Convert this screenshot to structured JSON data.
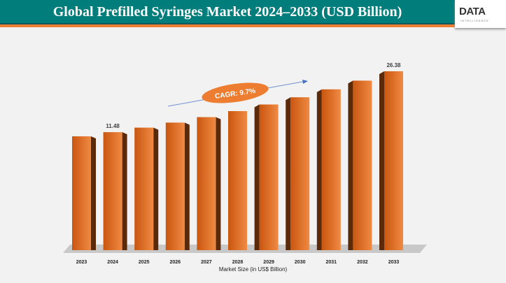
{
  "header": {
    "title": "Global Prefilled Syringes Market 2024–2033 (USD Billion)",
    "logo": "DATA",
    "logo_sub": "INTELLIGENCE"
  },
  "chart_data": {
    "type": "bar",
    "title": "Global Prefilled Syringes Market 2024–2033 (USD Billion)",
    "categories": [
      "2023",
      "2024",
      "2025",
      "2026",
      "2027",
      "2028",
      "2029",
      "2030",
      "2031",
      "2032",
      "2033"
    ],
    "values": [
      10.46,
      11.48,
      12.59,
      13.82,
      15.16,
      16.63,
      18.25,
      20.02,
      21.96,
      24.09,
      26.38
    ],
    "data_labels": {
      "2024": "11.48",
      "2033": "26.38"
    },
    "xlabel": "Market Size (in US$ Billion)",
    "ylabel": "",
    "annotation": "CAGR: 9.7%",
    "colors": {
      "bar": "#e0702a",
      "side": "#5a2a0a",
      "floor": "#bdbdbd"
    }
  }
}
